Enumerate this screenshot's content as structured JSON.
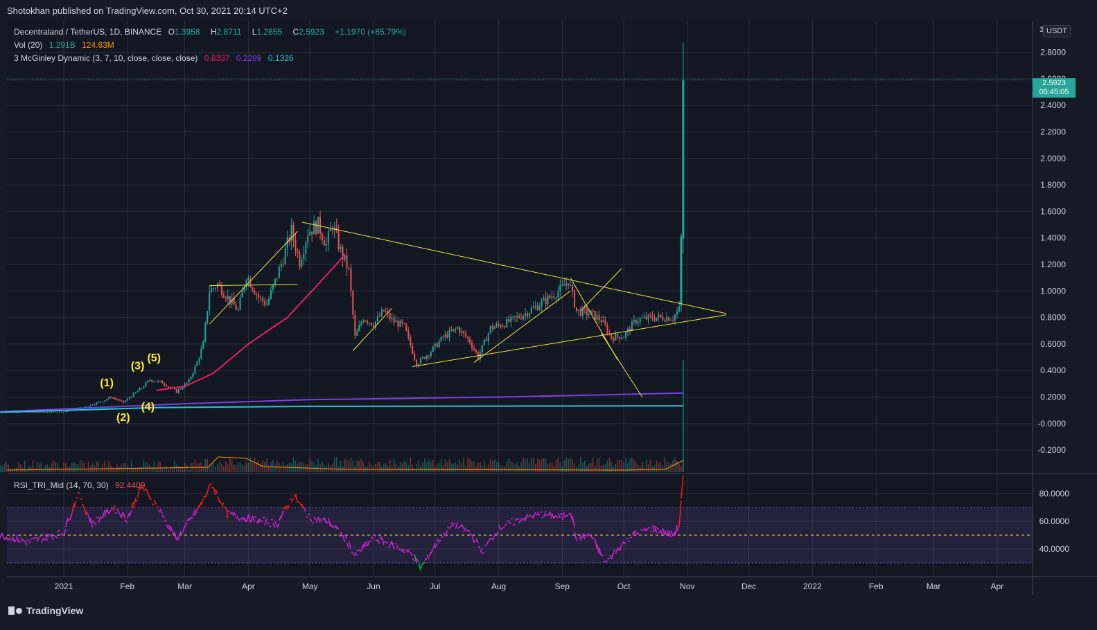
{
  "header": {
    "published": "Shotokhan published on TradingView.com, Oct 30, 2021 20:14 UTC+2"
  },
  "legend": {
    "symbol": "Decentraland / TetherUS, 1D, BINANCE",
    "o_label": "O",
    "o_value": "1.3958",
    "h_label": "H",
    "h_value": "2.8711",
    "l_label": "L",
    "l_value": "1.2855",
    "c_label": "C",
    "c_value": "2.5923",
    "change": "+1.1970 (+85.79%)",
    "vol_label": "Vol (20)",
    "vol_value1": "1.291B",
    "vol_value2": "124.63M",
    "mcg_label": "3 McGinley Dynamic (3, 7, 10, close, close, close)",
    "mcg_v1": "0.8337",
    "mcg_v2": "0.2289",
    "mcg_v3": "0.1326",
    "rsi_label": "RSI_TRI_Mid (14, 70, 30)",
    "rsi_value": "92.4409"
  },
  "price_axis": {
    "unit": "USDT",
    "top_tick": "3",
    "current_price": "2.5923",
    "countdown": "05:45:05"
  },
  "footer": {
    "brand": "TradingView"
  },
  "colors": {
    "up": "#26a69a",
    "down": "#ef5350",
    "ma_red": "#e91e63",
    "ma_purple": "#7b3fe4",
    "ma_teal": "#26c6da",
    "rsi": "#d623d6",
    "trend": "#f0e442",
    "wave": "#ffeb3b"
  },
  "chart_data": [
    {
      "type": "candlestick",
      "title": "Decentraland / TetherUS, 1D, BINANCE",
      "ylim": [
        -0.28,
        3.0
      ],
      "y_ticks": [
        "2.8000",
        "2.6000",
        "2.4000",
        "2.2000",
        "2.0000",
        "1.8000",
        "1.6000",
        "1.4000",
        "1.2000",
        "1.0000",
        "0.8000",
        "0.6000",
        "0.4000",
        "0.2000",
        "-0.0000",
        "-0.2000"
      ],
      "x_ticks": [
        "2021",
        "Feb",
        "Mar",
        "Apr",
        "May",
        "Jun",
        "Jul",
        "Aug",
        "Sep",
        "Oct",
        "Nov",
        "Dec",
        "2022",
        "Feb",
        "Mar",
        "Apr"
      ],
      "price_path": [
        [
          "2020-12-01",
          0.09
        ],
        [
          "2020-12-20",
          0.085
        ],
        [
          "2021-01-01",
          0.09
        ],
        [
          "2021-01-10",
          0.12
        ],
        [
          "2021-01-20",
          0.17
        ],
        [
          "2021-01-24",
          0.2
        ],
        [
          "2021-01-30",
          0.16
        ],
        [
          "2021-02-04",
          0.22
        ],
        [
          "2021-02-08",
          0.27
        ],
        [
          "2021-02-12",
          0.33
        ],
        [
          "2021-02-18",
          0.31
        ],
        [
          "2021-02-25",
          0.24
        ],
        [
          "2021-03-03",
          0.32
        ],
        [
          "2021-03-07",
          0.46
        ],
        [
          "2021-03-10",
          0.6
        ],
        [
          "2021-03-13",
          1.0
        ],
        [
          "2021-03-17",
          1.05
        ],
        [
          "2021-03-22",
          0.95
        ],
        [
          "2021-03-27",
          0.85
        ],
        [
          "2021-03-31",
          1.12
        ],
        [
          "2021-04-06",
          0.95
        ],
        [
          "2021-04-10",
          0.9
        ],
        [
          "2021-04-14",
          1.07
        ],
        [
          "2021-04-18",
          1.25
        ],
        [
          "2021-04-22",
          1.45
        ],
        [
          "2021-04-26",
          1.22
        ],
        [
          "2021-04-30",
          1.45
        ],
        [
          "2021-05-05",
          1.5
        ],
        [
          "2021-05-09",
          1.35
        ],
        [
          "2021-05-12",
          1.5
        ],
        [
          "2021-05-16",
          1.3
        ],
        [
          "2021-05-20",
          1.15
        ],
        [
          "2021-05-23",
          0.65
        ],
        [
          "2021-05-27",
          0.8
        ],
        [
          "2021-06-01",
          0.75
        ],
        [
          "2021-06-06",
          0.85
        ],
        [
          "2021-06-10",
          0.78
        ],
        [
          "2021-06-16",
          0.73
        ],
        [
          "2021-06-22",
          0.45
        ],
        [
          "2021-06-28",
          0.53
        ],
        [
          "2021-07-05",
          0.65
        ],
        [
          "2021-07-12",
          0.72
        ],
        [
          "2021-07-18",
          0.62
        ],
        [
          "2021-07-22",
          0.5
        ],
        [
          "2021-07-28",
          0.72
        ],
        [
          "2021-08-05",
          0.76
        ],
        [
          "2021-08-15",
          0.84
        ],
        [
          "2021-08-24",
          0.93
        ],
        [
          "2021-09-01",
          1.02
        ],
        [
          "2021-09-04",
          1.08
        ],
        [
          "2021-09-08",
          0.85
        ],
        [
          "2021-09-15",
          0.83
        ],
        [
          "2021-09-20",
          0.78
        ],
        [
          "2021-09-25",
          0.65
        ],
        [
          "2021-10-01",
          0.66
        ],
        [
          "2021-10-07",
          0.78
        ],
        [
          "2021-10-15",
          0.8
        ],
        [
          "2021-10-25",
          0.8
        ],
        [
          "2021-10-28",
          0.86
        ],
        [
          "2021-10-29",
          1.4
        ],
        [
          "2021-10-30",
          2.5923
        ]
      ],
      "last_candle": {
        "date": "2021-10-30",
        "open": 1.3958,
        "high": 2.8711,
        "low": 1.2855,
        "close": 2.5923
      },
      "mcginley_red": [
        [
          "2021-02-15",
          0.25
        ],
        [
          "2021-03-01",
          0.28
        ],
        [
          "2021-03-15",
          0.38
        ],
        [
          "2021-04-01",
          0.6
        ],
        [
          "2021-04-20",
          0.8
        ],
        [
          "2021-05-05",
          1.05
        ],
        [
          "2021-05-15",
          1.22
        ],
        [
          "2021-05-18",
          1.28
        ]
      ],
      "mcginley_purple": [
        [
          "2020-12-01",
          0.09
        ],
        [
          "2021-03-01",
          0.15
        ],
        [
          "2021-05-01",
          0.18
        ],
        [
          "2021-08-01",
          0.2
        ],
        [
          "2021-10-30",
          0.23
        ]
      ],
      "mcginley_teal": [
        [
          "2020-12-01",
          0.085
        ],
        [
          "2021-02-15",
          0.12
        ],
        [
          "2021-05-01",
          0.13
        ],
        [
          "2021-10-30",
          0.133
        ]
      ],
      "trendlines": [
        [
          [
            "2021-04-27",
            1.52
          ],
          [
            "2021-11-20",
            0.83
          ]
        ],
        [
          [
            "2021-06-20",
            0.43
          ],
          [
            "2021-11-20",
            0.82
          ]
        ],
        [
          [
            "2021-03-13",
            0.75
          ],
          [
            "2021-04-25",
            1.45
          ]
        ],
        [
          [
            "2021-03-13",
            1.04
          ],
          [
            "2021-04-25",
            1.05
          ]
        ],
        [
          [
            "2021-05-22",
            0.55
          ],
          [
            "2021-06-10",
            0.87
          ]
        ],
        [
          [
            "2021-07-20",
            0.46
          ],
          [
            "2021-09-05",
            1.0
          ]
        ],
        [
          [
            "2021-09-05",
            1.1
          ],
          [
            "2021-09-28",
            0.48
          ]
        ],
        [
          [
            "2021-09-20",
            0.68
          ],
          [
            "2021-10-10",
            0.2
          ]
        ],
        [
          [
            "2021-09-10",
            0.85
          ],
          [
            "2021-09-30",
            1.17
          ]
        ]
      ],
      "wave_labels": [
        {
          "label": "(1)",
          "date": "2021-01-22",
          "price": 0.28
        },
        {
          "label": "(2)",
          "date": "2021-01-30",
          "price": 0.02
        },
        {
          "label": "(3)",
          "date": "2021-02-06",
          "price": 0.41
        },
        {
          "label": "(4)",
          "date": "2021-02-11",
          "price": 0.1
        },
        {
          "label": "(5)",
          "date": "2021-02-14",
          "price": 0.47
        }
      ]
    },
    {
      "type": "line",
      "title": "RSI_TRI_Mid (14, 70, 30)",
      "ylim": [
        22,
        93
      ],
      "y_ticks": [
        "80.0000",
        "60.0000",
        "40.0000"
      ],
      "overbought": 70,
      "oversold": 30,
      "mid": 50,
      "series": [
        [
          "2020-12-01",
          50
        ],
        [
          "2020-12-15",
          45
        ],
        [
          "2021-01-01",
          52
        ],
        [
          "2021-01-08",
          80
        ],
        [
          "2021-01-15",
          58
        ],
        [
          "2021-01-25",
          70
        ],
        [
          "2021-02-01",
          62
        ],
        [
          "2021-02-08",
          85
        ],
        [
          "2021-02-15",
          72
        ],
        [
          "2021-02-25",
          47
        ],
        [
          "2021-03-08",
          70
        ],
        [
          "2021-03-14",
          87
        ],
        [
          "2021-03-22",
          65
        ],
        [
          "2021-04-01",
          62
        ],
        [
          "2021-04-15",
          58
        ],
        [
          "2021-04-23",
          79
        ],
        [
          "2021-05-01",
          62
        ],
        [
          "2021-05-10",
          60
        ],
        [
          "2021-05-19",
          46
        ],
        [
          "2021-05-23",
          35
        ],
        [
          "2021-06-01",
          48
        ],
        [
          "2021-06-12",
          42
        ],
        [
          "2021-06-20",
          36
        ],
        [
          "2021-06-24",
          26
        ],
        [
          "2021-07-02",
          45
        ],
        [
          "2021-07-10",
          58
        ],
        [
          "2021-07-18",
          52
        ],
        [
          "2021-07-24",
          38
        ],
        [
          "2021-08-01",
          55
        ],
        [
          "2021-08-12",
          62
        ],
        [
          "2021-08-22",
          65
        ],
        [
          "2021-09-01",
          63
        ],
        [
          "2021-09-05",
          68
        ],
        [
          "2021-09-08",
          48
        ],
        [
          "2021-09-15",
          50
        ],
        [
          "2021-09-22",
          30
        ],
        [
          "2021-09-28",
          40
        ],
        [
          "2021-10-05",
          50
        ],
        [
          "2021-10-15",
          55
        ],
        [
          "2021-10-25",
          50
        ],
        [
          "2021-10-28",
          57
        ],
        [
          "2021-10-30",
          92.44
        ]
      ]
    }
  ]
}
